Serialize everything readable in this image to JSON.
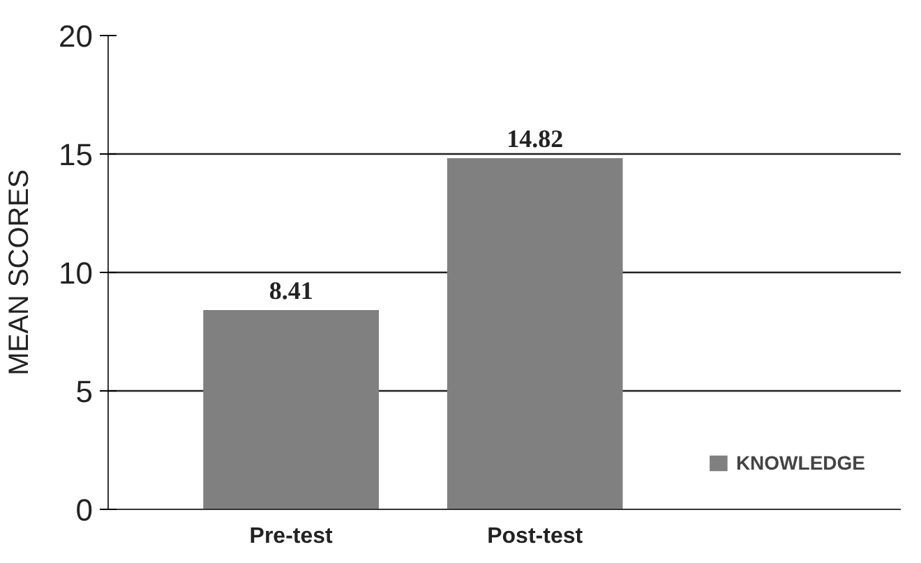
{
  "chart_data": {
    "type": "bar",
    "ylabel": "MEAN SCORES",
    "categories": [
      "Pre-test",
      "Post-test"
    ],
    "series": [
      {
        "name": "KNOWLEDGE",
        "color": "#808080",
        "values": [
          8.41,
          14.82
        ]
      }
    ],
    "ylim": [
      0,
      20
    ],
    "yticks": [
      0,
      5,
      10,
      15,
      20
    ],
    "grid": "y",
    "legend": "bottom right",
    "data_labels": true
  }
}
